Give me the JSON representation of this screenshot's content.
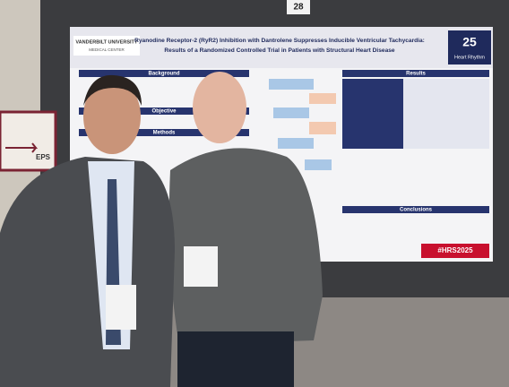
{
  "booth_number": "28",
  "poster": {
    "institution": "VANDERBILT UNIVERSITY",
    "institution_sub": "MEDICAL CENTER",
    "title_line1": "Ryanodine Receptor-2 (RyR2) Inhibition with Dantrolene Suppresses Inducible Ventricular Tachycardia:",
    "title_line2": "Results of a Randomized Controlled Trial in Patients with Structural Heart Disease",
    "logo_number": "25",
    "logo_name": "Heart Rhythm",
    "sections": [
      "Background",
      "Objective",
      "Methods",
      "Results",
      "Conclusions"
    ],
    "hashtag": "#HRS2025"
  },
  "side_sign": "EPS"
}
